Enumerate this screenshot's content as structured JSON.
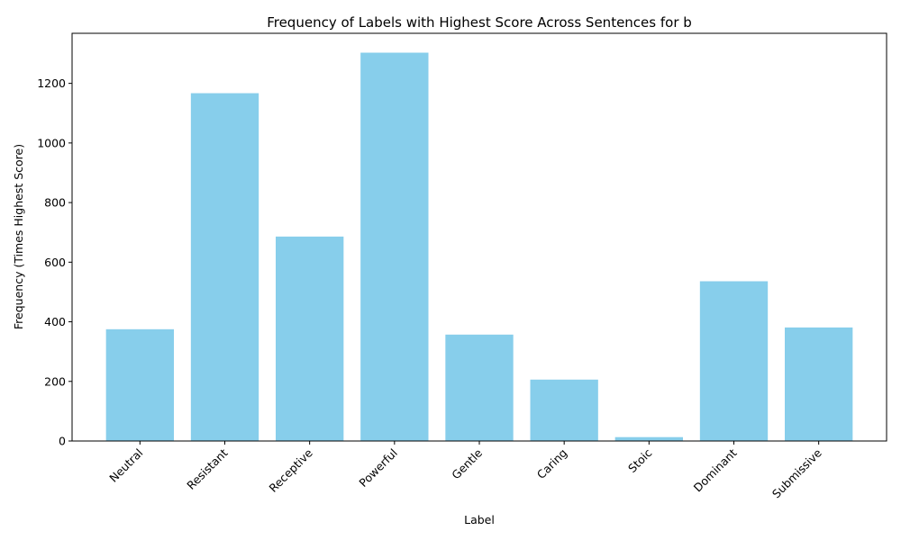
{
  "chart_data": {
    "type": "bar",
    "title": "Frequency of Labels with Highest Score Across Sentences for b",
    "xlabel": "Label",
    "ylabel": "Frequency (Times Highest Score)",
    "categories": [
      "Neutral",
      "Resistant",
      "Receptive",
      "Powerful",
      "Gentle",
      "Caring",
      "Stoic",
      "Dominant",
      "Submissive"
    ],
    "values": [
      375,
      1167,
      686,
      1303,
      357,
      206,
      13,
      536,
      381
    ],
    "ylim": [
      0,
      1368
    ],
    "yticks": [
      0,
      200,
      400,
      600,
      800,
      1000,
      1200
    ],
    "bar_color": "#87ceeb",
    "grid": false,
    "legend": "none"
  }
}
